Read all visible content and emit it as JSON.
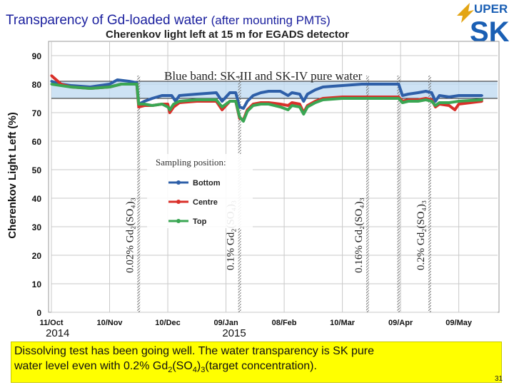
{
  "slide": {
    "title": "Transparency of Gd-loaded water",
    "title_suffix": "(after mounting PMTs)",
    "page_number": "31",
    "logo_text": "UPER",
    "logo_letters": "SK"
  },
  "caption": {
    "line1": "Dissolving test has been going well. The water transparency is SK pure",
    "line2a": "water level even with 0.2% Gd",
    "sub1": "2",
    "mid1": "(SO",
    "sub2": "4",
    "mid2": ")",
    "sub3": "3",
    "line2b": "(target concentration)."
  },
  "chart_data": {
    "type": "line",
    "title": "Cherenkov light left at 15 m for EGADS detector",
    "ylabel": "Cherenkov Light Left (%)",
    "ylim": [
      0,
      95
    ],
    "yticks": [
      0,
      10,
      20,
      30,
      40,
      50,
      60,
      70,
      80,
      90
    ],
    "xlim": [
      0,
      230
    ],
    "xticks": [
      {
        "day": 0,
        "label": "11/Oct"
      },
      {
        "day": 30,
        "label": "10/Nov"
      },
      {
        "day": 60,
        "label": "10/Dec"
      },
      {
        "day": 90,
        "label": "09/Jan"
      },
      {
        "day": 120,
        "label": "08/Feb"
      },
      {
        "day": 150,
        "label": "10/Mar"
      },
      {
        "day": 180,
        "label": "09/Apr"
      },
      {
        "day": 210,
        "label": "09/May"
      }
    ],
    "year_labels": [
      {
        "day": 1,
        "label": "2014"
      },
      {
        "day": 92,
        "label": "2015"
      }
    ],
    "band": {
      "label": "Blue band: SK-III and SK-IV pure water",
      "y_low": 75,
      "y_high": 81
    },
    "legend_title": "Sampling position:",
    "series": [
      {
        "name": "Bottom",
        "color": "#2e5fa8",
        "points": [
          [
            0,
            81
          ],
          [
            5,
            80
          ],
          [
            10,
            79.5
          ],
          [
            20,
            79
          ],
          [
            30,
            80
          ],
          [
            34,
            81.5
          ],
          [
            40,
            81
          ],
          [
            44,
            80.5
          ],
          [
            45,
            73
          ],
          [
            48,
            74
          ],
          [
            52,
            75
          ],
          [
            57,
            76
          ],
          [
            62,
            76
          ],
          [
            64,
            74
          ],
          [
            66,
            76
          ],
          [
            75,
            76.5
          ],
          [
            85,
            77
          ],
          [
            88,
            74
          ],
          [
            92,
            77
          ],
          [
            95,
            77
          ],
          [
            97,
            72
          ],
          [
            99,
            71.5
          ],
          [
            101,
            74
          ],
          [
            104,
            76
          ],
          [
            108,
            77
          ],
          [
            112,
            77.5
          ],
          [
            118,
            77.5
          ],
          [
            122,
            76
          ],
          [
            124,
            77
          ],
          [
            128,
            76.5
          ],
          [
            130,
            74
          ],
          [
            132,
            76.5
          ],
          [
            136,
            78
          ],
          [
            140,
            79
          ],
          [
            150,
            79.5
          ],
          [
            160,
            80
          ],
          [
            170,
            80
          ],
          [
            179,
            80
          ],
          [
            181,
            76
          ],
          [
            184,
            76.5
          ],
          [
            189,
            77
          ],
          [
            193,
            77.5
          ],
          [
            196,
            77
          ],
          [
            198,
            74
          ],
          [
            200,
            76
          ],
          [
            205,
            75.5
          ],
          [
            210,
            76
          ],
          [
            222,
            76
          ]
        ]
      },
      {
        "name": "Centre",
        "color": "#d9302a",
        "points": [
          [
            0,
            83
          ],
          [
            5,
            80
          ],
          [
            10,
            79
          ],
          [
            20,
            78.5
          ],
          [
            30,
            79
          ],
          [
            36,
            80
          ],
          [
            44,
            80
          ],
          [
            45,
            72
          ],
          [
            48,
            72.5
          ],
          [
            52,
            72.5
          ],
          [
            57,
            73
          ],
          [
            60,
            73
          ],
          [
            61,
            70
          ],
          [
            63,
            72
          ],
          [
            66,
            73.5
          ],
          [
            75,
            74
          ],
          [
            85,
            74
          ],
          [
            88,
            71
          ],
          [
            92,
            74
          ],
          [
            95,
            74
          ],
          [
            97,
            68
          ],
          [
            99,
            67.5
          ],
          [
            101,
            71
          ],
          [
            104,
            73
          ],
          [
            108,
            73.5
          ],
          [
            112,
            73.5
          ],
          [
            118,
            73
          ],
          [
            122,
            72.5
          ],
          [
            124,
            73.5
          ],
          [
            128,
            73
          ],
          [
            130,
            70
          ],
          [
            132,
            72.5
          ],
          [
            136,
            74
          ],
          [
            140,
            75
          ],
          [
            150,
            75.5
          ],
          [
            160,
            75.5
          ],
          [
            170,
            75.5
          ],
          [
            179,
            75.5
          ],
          [
            181,
            74
          ],
          [
            184,
            74.5
          ],
          [
            189,
            74.5
          ],
          [
            193,
            75
          ],
          [
            196,
            74.5
          ],
          [
            198,
            72
          ],
          [
            200,
            73
          ],
          [
            205,
            72.5
          ],
          [
            208,
            71
          ],
          [
            210,
            73
          ],
          [
            222,
            74
          ]
        ]
      },
      {
        "name": "Top",
        "color": "#3aa653",
        "points": [
          [
            0,
            80
          ],
          [
            5,
            79.5
          ],
          [
            10,
            79
          ],
          [
            20,
            78.5
          ],
          [
            30,
            79
          ],
          [
            36,
            80
          ],
          [
            44,
            80
          ],
          [
            45,
            73
          ],
          [
            48,
            73
          ],
          [
            52,
            72.5
          ],
          [
            57,
            73
          ],
          [
            60,
            72
          ],
          [
            61,
            71
          ],
          [
            63,
            73
          ],
          [
            66,
            74
          ],
          [
            75,
            74.5
          ],
          [
            85,
            74.5
          ],
          [
            88,
            72
          ],
          [
            92,
            74
          ],
          [
            95,
            74
          ],
          [
            97,
            68.5
          ],
          [
            99,
            67
          ],
          [
            101,
            70.5
          ],
          [
            104,
            72.5
          ],
          [
            108,
            73
          ],
          [
            112,
            73
          ],
          [
            118,
            72
          ],
          [
            122,
            71
          ],
          [
            124,
            72.5
          ],
          [
            128,
            72
          ],
          [
            130,
            69.5
          ],
          [
            132,
            72
          ],
          [
            136,
            73.5
          ],
          [
            140,
            74.5
          ],
          [
            150,
            75
          ],
          [
            160,
            75
          ],
          [
            170,
            75
          ],
          [
            179,
            75
          ],
          [
            181,
            73.5
          ],
          [
            184,
            74
          ],
          [
            189,
            74
          ],
          [
            193,
            74.5
          ],
          [
            196,
            74
          ],
          [
            198,
            72.5
          ],
          [
            200,
            73.5
          ],
          [
            205,
            73.5
          ],
          [
            210,
            74
          ],
          [
            222,
            74.5
          ]
        ]
      }
    ],
    "annotations": [
      {
        "day": 45,
        "label": "0.02% Gd₂(SO₄)₃"
      },
      {
        "day": 97,
        "label": "0.1% Gd₂(SO₄)₃"
      },
      {
        "day": 163,
        "label": "0.16% Gd₂(SO₄)₃"
      },
      {
        "day": 179,
        "label": ""
      },
      {
        "day": 195,
        "label": "0.2% Gd₂(SO₄)₃"
      }
    ]
  },
  "colors": {
    "title": "#1a1f9e",
    "band": "#bcd8f0",
    "grid": "#c9c9c9",
    "caption_bg": "#ffff00"
  }
}
